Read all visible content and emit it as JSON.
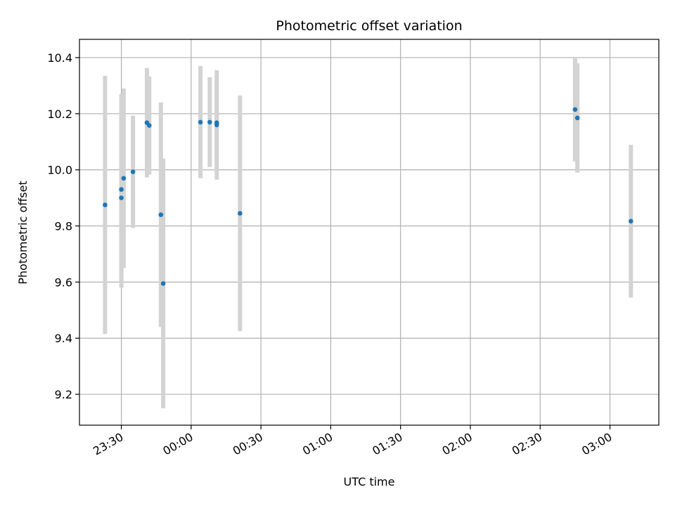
{
  "chart_data": {
    "type": "scatter",
    "title": "Photometric offset variation",
    "xlabel": "UTC time",
    "ylabel": "Photometric offset",
    "grid": true,
    "x_unit": "UTC time",
    "x_ticks": [
      {
        "t": "23:30",
        "label": "23:30"
      },
      {
        "t": "24:00",
        "label": "00:00"
      },
      {
        "t": "24:30",
        "label": "00:30"
      },
      {
        "t": "25:00",
        "label": "01:00"
      },
      {
        "t": "25:30",
        "label": "01:30"
      },
      {
        "t": "26:00",
        "label": "02:00"
      },
      {
        "t": "26:30",
        "label": "02:30"
      },
      {
        "t": "27:00",
        "label": "03:00"
      }
    ],
    "xlim": [
      "23:12",
      "27:21"
    ],
    "y_ticks": [
      9.2,
      9.4,
      9.6,
      9.8,
      10.0,
      10.2,
      10.4
    ],
    "ylim": [
      9.09,
      10.465
    ],
    "colors": {
      "point": "#1f77b4",
      "errorbar": "#d3d3d3",
      "grid": "#b0b0b0"
    },
    "points": [
      {
        "x": "23:23",
        "y": 9.875,
        "err": 0.46
      },
      {
        "x": "23:30",
        "y": 9.9,
        "err": 0.32
      },
      {
        "x": "23:30",
        "y": 9.93,
        "err": 0.34
      },
      {
        "x": "23:31",
        "y": 9.97,
        "err": 0.32
      },
      {
        "x": "23:35",
        "y": 9.993,
        "err": 0.2
      },
      {
        "x": "23:41",
        "y": 10.168,
        "err": 0.195
      },
      {
        "x": "23:42",
        "y": 10.158,
        "err": 0.175
      },
      {
        "x": "23:47",
        "y": 9.84,
        "err": 0.4
      },
      {
        "x": "23:48",
        "y": 9.595,
        "err": 0.445
      },
      {
        "x": "24:04",
        "y": 10.17,
        "err": 0.2
      },
      {
        "x": "24:08",
        "y": 10.17,
        "err": 0.16
      },
      {
        "x": "24:11",
        "y": 10.16,
        "err": 0.195
      },
      {
        "x": "24:11",
        "y": 10.168,
        "err": 0.165
      },
      {
        "x": "24:21",
        "y": 9.845,
        "err": 0.42
      },
      {
        "x": "26:45",
        "y": 10.215,
        "err": 0.185
      },
      {
        "x": "26:46",
        "y": 10.185,
        "err": 0.195
      },
      {
        "x": "27:09",
        "y": 9.817,
        "err": 0.272
      }
    ]
  }
}
